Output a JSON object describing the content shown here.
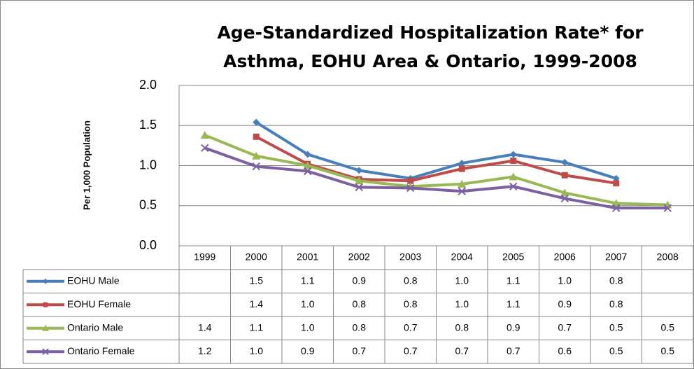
{
  "chart_data": {
    "type": "line",
    "title": [
      "Age-Standardized Hospitalization Rate* for",
      "Asthma, EOHU Area & Ontario, 1999-2008"
    ],
    "y_label": "Per 1,000 Population",
    "categories": [
      "1999",
      "2000",
      "2001",
      "2002",
      "2003",
      "2004",
      "2005",
      "2006",
      "2007",
      "2008"
    ],
    "ylim": [
      0,
      2
    ],
    "yticks": [
      {
        "value": 0,
        "label": "0.0"
      },
      {
        "value": 0.5,
        "label": "0.5"
      },
      {
        "value": 1,
        "label": "1.0"
      },
      {
        "value": 1.5,
        "label": "1.5"
      },
      {
        "value": 2,
        "label": "2.0"
      }
    ],
    "grid": true,
    "series": [
      {
        "name": "EOHU Male",
        "color": "#4a7ebb",
        "marker": "diamond",
        "values": [
          null,
          1.54,
          1.14,
          0.94,
          0.84,
          1.03,
          1.14,
          1.04,
          0.84,
          null
        ],
        "value_labels": [
          null,
          "1.5",
          "1.1",
          "0.9",
          "0.8",
          "1.0",
          "1.1",
          "1.0",
          "0.8",
          null
        ]
      },
      {
        "name": "EOHU Female",
        "color": "#be4b48",
        "marker": "square",
        "values": [
          null,
          1.36,
          1.02,
          0.83,
          0.81,
          0.96,
          1.06,
          0.88,
          0.78,
          null
        ],
        "value_labels": [
          null,
          "1.4",
          "1.0",
          "0.8",
          "0.8",
          "1.0",
          "1.1",
          "0.9",
          "0.8",
          null
        ]
      },
      {
        "name": "Ontario Male",
        "color": "#98b954",
        "marker": "triangle",
        "values": [
          1.38,
          1.12,
          1.0,
          0.81,
          0.74,
          0.77,
          0.86,
          0.66,
          0.53,
          0.51
        ],
        "value_labels": [
          "1.4",
          "1.1",
          "1.0",
          "0.8",
          "0.7",
          "0.8",
          "0.9",
          "0.7",
          "0.5",
          "0.5"
        ]
      },
      {
        "name": "Ontario Female",
        "color": "#7d60a0",
        "marker": "x",
        "values": [
          1.22,
          0.99,
          0.93,
          0.73,
          0.72,
          0.68,
          0.74,
          0.59,
          0.47,
          0.47
        ],
        "value_labels": [
          "1.2",
          "1.0",
          "0.9",
          "0.7",
          "0.7",
          "0.7",
          "0.7",
          "0.6",
          "0.5",
          "0.5"
        ]
      }
    ]
  }
}
